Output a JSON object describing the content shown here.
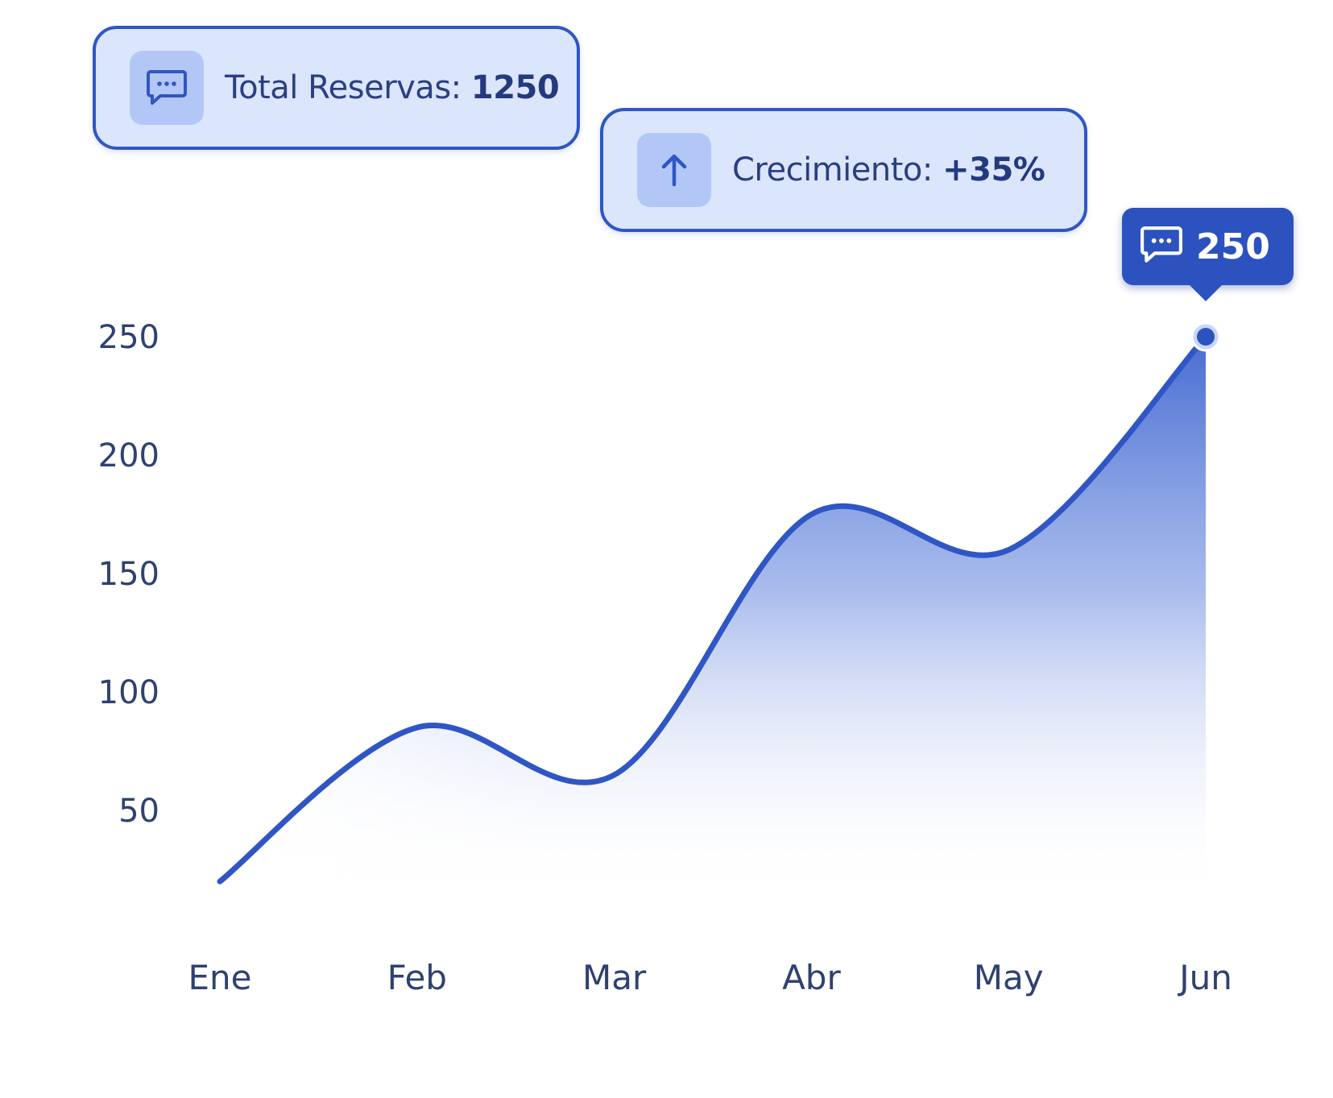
{
  "cards": {
    "total": {
      "icon": "chat-bubble-icon",
      "label": "Total Reservas:",
      "value": "1250"
    },
    "growth": {
      "icon": "arrow-up-icon",
      "label": "Crecimiento:",
      "value": "+35%"
    }
  },
  "tooltip": {
    "icon": "chat-bubble-icon",
    "value": "250"
  },
  "colors": {
    "line": "#2f56c4",
    "fill": "#3d63cf",
    "card_bg": "#dbe5fc",
    "text": "#2f4170"
  },
  "chart_data": {
    "type": "area",
    "title": "",
    "xlabel": "",
    "ylabel": "",
    "categories": [
      "Ene",
      "Feb",
      "Mar",
      "Abr",
      "May",
      "Jun"
    ],
    "series": [
      {
        "values": [
          20,
          85,
          65,
          175,
          160,
          250
        ]
      }
    ],
    "yticks": [
      50,
      100,
      150,
      200,
      250
    ],
    "ylim": [
      0,
      250
    ],
    "grid": false,
    "legend": "none",
    "highlight": {
      "category": "Jun",
      "value": 250
    }
  }
}
